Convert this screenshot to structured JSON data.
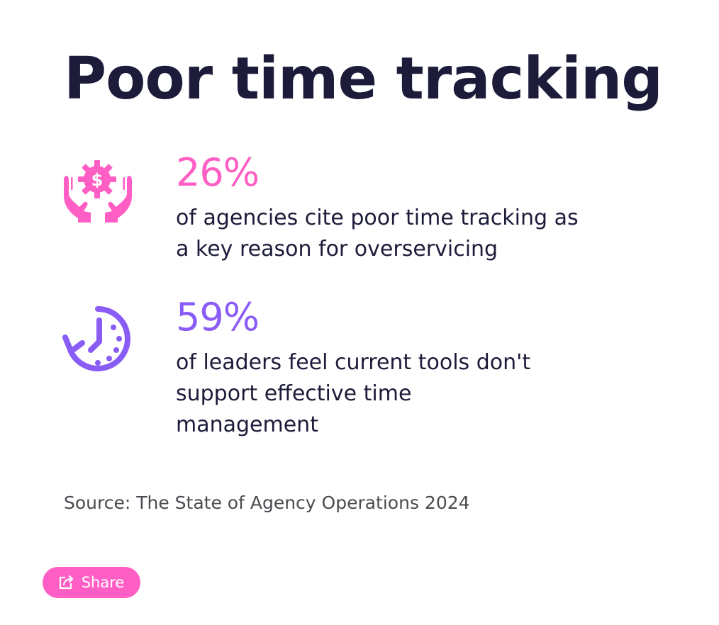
{
  "title": "Poor time tracking",
  "stats": [
    {
      "value": "26%",
      "description": "of agencies cite poor time tracking as a key reason for overservicing",
      "icon": "hands-holding-dollar-gear-icon",
      "color": "#ff5ec4"
    },
    {
      "value": "59%",
      "description": "of leaders feel current tools don't support effective time management",
      "icon": "clock-history-icon",
      "color": "#8a5cf6"
    }
  ],
  "source": "Source: The State of Agency Operations 2024",
  "share": {
    "label": "Share",
    "icon": "share-icon",
    "color": "#ff5ec4"
  },
  "colors": {
    "title": "#1c1c3a",
    "text": "#1c1c3a",
    "source": "#4a4a50",
    "background": "#ffffff"
  }
}
